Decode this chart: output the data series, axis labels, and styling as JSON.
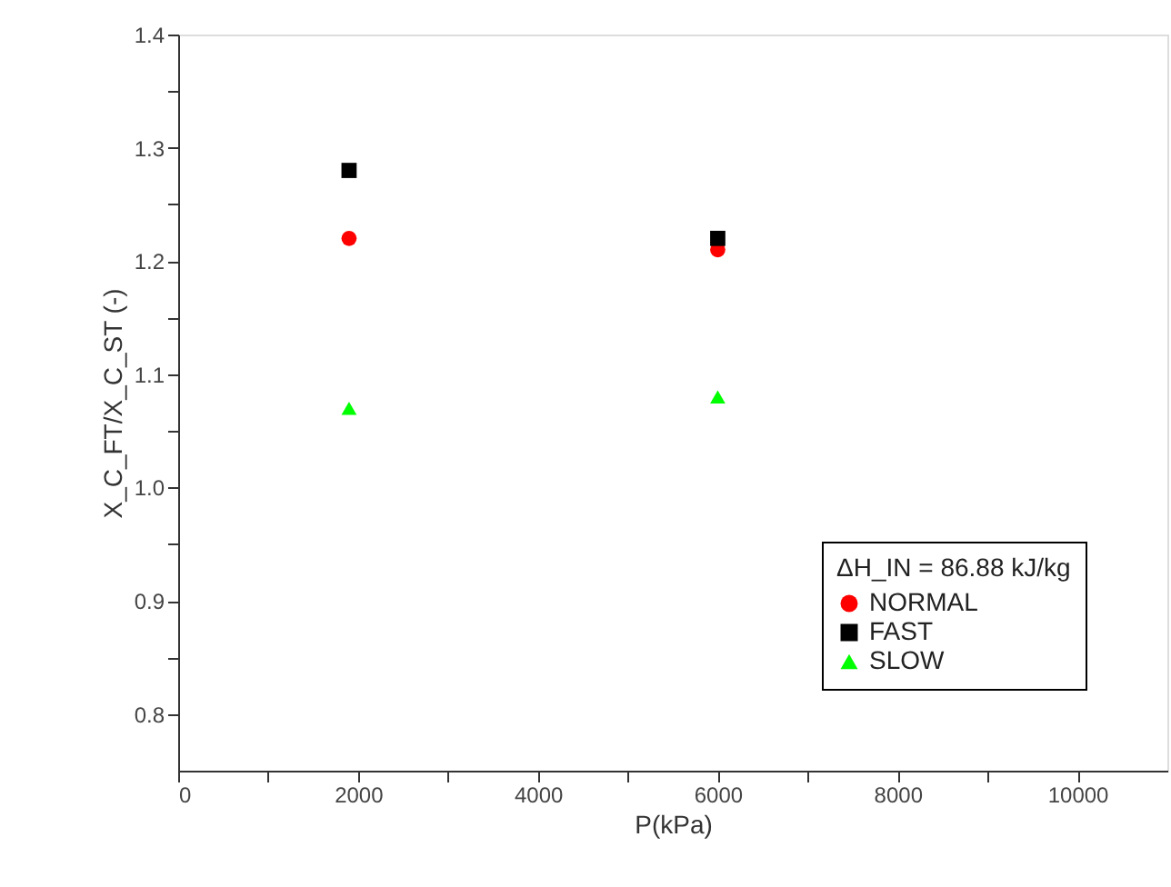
{
  "chart_data": {
    "type": "scatter",
    "xlabel": "P(kPa)",
    "ylabel": "X_C_FT/X_C_ST (-)",
    "legend_title": "ΔH_IN = 86.88 kJ/kg",
    "x": [
      1900,
      6000
    ],
    "series": [
      {
        "name": "NORMAL",
        "color": "#ff0000",
        "marker": "circle",
        "values": [
          1.22,
          1.21
        ]
      },
      {
        "name": "FAST",
        "color": "#000000",
        "marker": "square",
        "values": [
          1.28,
          1.22
        ]
      },
      {
        "name": "SLOW",
        "color": "#00ff00",
        "marker": "triangle",
        "values": [
          1.07,
          1.08
        ]
      }
    ],
    "xlim": [
      0,
      11000
    ],
    "ylim": [
      0.75,
      1.4
    ],
    "xticks": [
      0,
      {
        "value": 1000,
        "label": null
      },
      2000,
      {
        "value": 3000,
        "label": null
      },
      4000,
      {
        "value": 5000,
        "label": null
      },
      6000,
      {
        "value": 7000,
        "label": null
      },
      8000,
      {
        "value": 9000,
        "label": null
      },
      10000
    ],
    "yticks": [
      {
        "value": 0.8,
        "label": "0.8"
      },
      {
        "value": 0.85,
        "label": null
      },
      {
        "value": 0.9,
        "label": "0.9"
      },
      {
        "value": 0.95,
        "label": null
      },
      {
        "value": 1.0,
        "label": "1.0"
      },
      {
        "value": 1.05,
        "label": null
      },
      {
        "value": 1.1,
        "label": "1.1"
      },
      {
        "value": 1.15,
        "label": null
      },
      {
        "value": 1.2,
        "label": "1.2"
      },
      {
        "value": 1.25,
        "label": null
      },
      {
        "value": 1.3,
        "label": "1.3"
      },
      {
        "value": 1.35,
        "label": null
      },
      {
        "value": 1.4,
        "label": "1.4"
      }
    ],
    "legend": "bottom right"
  }
}
